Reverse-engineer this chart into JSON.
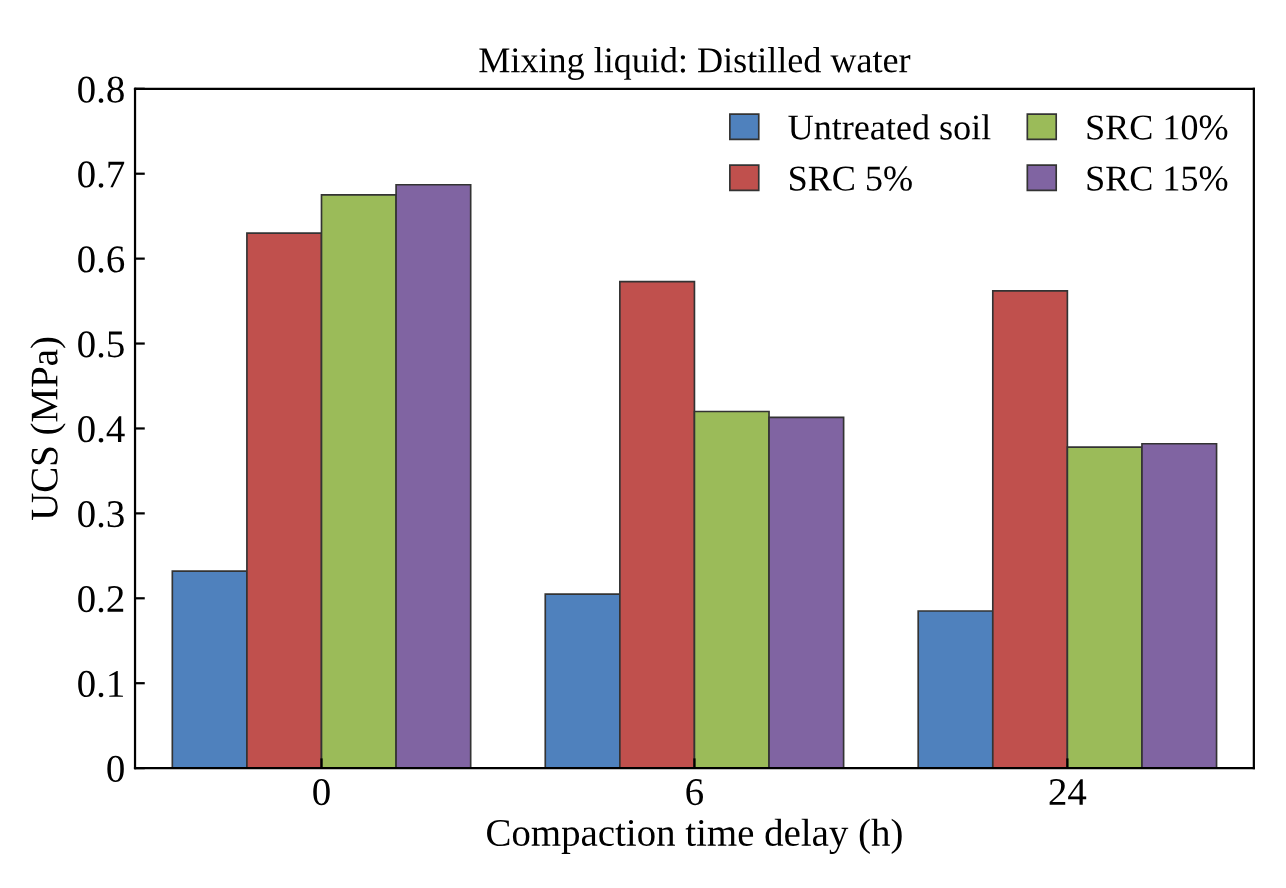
{
  "chart_data": {
    "type": "bar",
    "title": "Mixing liquid: Distilled water",
    "xlabel": "Compaction time delay (h)",
    "ylabel": "UCS (MPa)",
    "categories": [
      "0",
      "6",
      "24"
    ],
    "series": [
      {
        "name": "Untreated soil",
        "color": "#4f81bd",
        "values": [
          0.232,
          0.205,
          0.185
        ]
      },
      {
        "name": "SRC 5%",
        "color": "#c0504d",
        "values": [
          0.63,
          0.573,
          0.562
        ]
      },
      {
        "name": "SRC 10%",
        "color": "#9bbb59",
        "values": [
          0.675,
          0.42,
          0.378
        ]
      },
      {
        "name": "SRC 15%",
        "color": "#8064a2",
        "values": [
          0.687,
          0.413,
          0.382
        ]
      }
    ],
    "ylim": [
      0,
      0.8
    ],
    "yticks": [
      0,
      0.1,
      0.2,
      0.3,
      0.4,
      0.5,
      0.6,
      0.7,
      0.8
    ],
    "grid": false,
    "legend": "top right"
  }
}
